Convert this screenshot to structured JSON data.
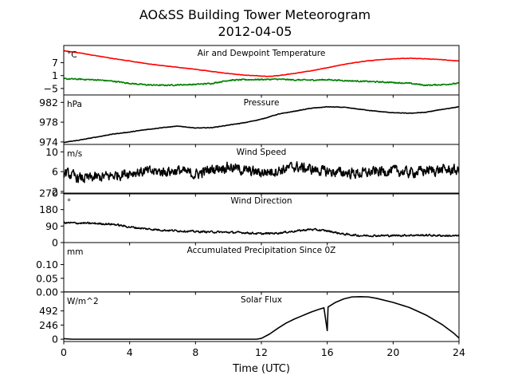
{
  "figure": {
    "title": "AO&SS Building Tower Meteorogram",
    "subtitle": "2012-04-05",
    "xlabel": "Time (UTC)",
    "x_ticks": [
      "0",
      "4",
      "8",
      "12",
      "16",
      "20",
      "24"
    ],
    "x_tick_values": [
      0,
      4,
      8,
      12,
      16,
      20,
      24
    ],
    "xlim": [
      0,
      24
    ]
  },
  "chart_data": [
    {
      "type": "line",
      "title": "Air and Dewpoint Temperature",
      "unit": "°C",
      "ylim": [
        -8,
        15
      ],
      "y_ticks": [
        "7",
        "1",
        "−5"
      ],
      "y_tick_values": [
        7,
        1,
        -5
      ],
      "series": [
        {
          "color": "#ff0000",
          "noise": 0.15,
          "points": [
            [
              0,
              12.5
            ],
            [
              1,
              11.5
            ],
            [
              2,
              10.2
            ],
            [
              3,
              8.9
            ],
            [
              4,
              7.8
            ],
            [
              5,
              6.6
            ],
            [
              6,
              5.6
            ],
            [
              7,
              4.8
            ],
            [
              8,
              3.9
            ],
            [
              9,
              2.9
            ],
            [
              10,
              2.0
            ],
            [
              11,
              1.2
            ],
            [
              12,
              0.8
            ],
            [
              12.5,
              0.6
            ],
            [
              13,
              1.0
            ],
            [
              14,
              2.0
            ],
            [
              15,
              3.2
            ],
            [
              16,
              4.6
            ],
            [
              17,
              6.2
            ],
            [
              18,
              7.4
            ],
            [
              19,
              8.3
            ],
            [
              20,
              8.8
            ],
            [
              21,
              9.1
            ],
            [
              22,
              8.8
            ],
            [
              23,
              8.4
            ],
            [
              24,
              7.8
            ]
          ]
        },
        {
          "color": "#008000",
          "noise": 0.45,
          "points": [
            [
              0,
              -0.5
            ],
            [
              1,
              -0.7
            ],
            [
              2,
              -1.0
            ],
            [
              3,
              -1.6
            ],
            [
              4,
              -2.6
            ],
            [
              5,
              -3.3
            ],
            [
              6,
              -3.5
            ],
            [
              7,
              -3.3
            ],
            [
              8,
              -3.1
            ],
            [
              9,
              -2.6
            ],
            [
              10,
              -1.2
            ],
            [
              11,
              -0.9
            ],
            [
              12,
              -0.8
            ],
            [
              13,
              -0.7
            ],
            [
              14,
              -1.0
            ],
            [
              15,
              -1.1
            ],
            [
              16,
              -0.9
            ],
            [
              17,
              -1.3
            ],
            [
              18,
              -1.6
            ],
            [
              19,
              -1.9
            ],
            [
              20,
              -2.2
            ],
            [
              21,
              -2.6
            ],
            [
              22,
              -3.5
            ],
            [
              23,
              -3.2
            ],
            [
              24,
              -2.6
            ]
          ]
        }
      ]
    },
    {
      "type": "line",
      "title": "Pressure",
      "unit": "hPa",
      "ylim": [
        973.5,
        983.5
      ],
      "y_ticks": [
        "982",
        "978",
        "974"
      ],
      "y_tick_values": [
        982,
        978,
        974
      ],
      "series": [
        {
          "color": "#000000",
          "noise": 0.08,
          "points": [
            [
              0,
              973.9
            ],
            [
              1,
              974.4
            ],
            [
              2,
              975.0
            ],
            [
              3,
              975.6
            ],
            [
              4,
              976.0
            ],
            [
              5,
              976.5
            ],
            [
              6,
              976.9
            ],
            [
              7,
              977.2
            ],
            [
              8,
              976.8
            ],
            [
              9,
              976.9
            ],
            [
              10,
              977.4
            ],
            [
              11,
              977.9
            ],
            [
              12,
              978.6
            ],
            [
              13,
              979.6
            ],
            [
              14,
              980.2
            ],
            [
              15,
              980.8
            ],
            [
              16,
              981.1
            ],
            [
              17,
              981.0
            ],
            [
              18,
              980.6
            ],
            [
              19,
              980.2
            ],
            [
              20,
              979.9
            ],
            [
              21,
              979.8
            ],
            [
              22,
              980.0
            ],
            [
              23,
              980.6
            ],
            [
              24,
              981.1
            ]
          ]
        }
      ]
    },
    {
      "type": "line",
      "title": "Wind Speed",
      "unit": "m/s",
      "ylim": [
        1.5,
        11.5
      ],
      "y_ticks": [
        "10",
        "6",
        "2"
      ],
      "y_tick_values": [
        10,
        6,
        2
      ],
      "series": [
        {
          "color": "#000000",
          "noise": 1.6,
          "points": [
            [
              0,
              5.8
            ],
            [
              1,
              4.6
            ],
            [
              2,
              4.8
            ],
            [
              3,
              5.2
            ],
            [
              4,
              5.8
            ],
            [
              5,
              6.0
            ],
            [
              6,
              6.0
            ],
            [
              7,
              6.2
            ],
            [
              8,
              5.4
            ],
            [
              9,
              6.5
            ],
            [
              10,
              7.0
            ],
            [
              11,
              6.2
            ],
            [
              12,
              5.8
            ],
            [
              13,
              6.2
            ],
            [
              14,
              7.0
            ],
            [
              15,
              6.5
            ],
            [
              16,
              6.0
            ],
            [
              17,
              5.8
            ],
            [
              18,
              5.6
            ],
            [
              19,
              6.0
            ],
            [
              20,
              6.2
            ],
            [
              21,
              5.8
            ],
            [
              22,
              6.2
            ],
            [
              23,
              6.4
            ],
            [
              24,
              6.2
            ]
          ]
        }
      ]
    },
    {
      "type": "line",
      "title": "Wind Direction",
      "unit": "°",
      "ylim": [
        0,
        270
      ],
      "y_ticks": [
        "270",
        "180",
        "90",
        "0"
      ],
      "y_tick_values": [
        270,
        180,
        90,
        0
      ],
      "series": [
        {
          "color": "#000000",
          "noise": 8,
          "points": [
            [
              0,
              108
            ],
            [
              1,
              106
            ],
            [
              2,
              104
            ],
            [
              3,
              100
            ],
            [
              4,
              85
            ],
            [
              5,
              75
            ],
            [
              6,
              68
            ],
            [
              7,
              64
            ],
            [
              8,
              60
            ],
            [
              9,
              58
            ],
            [
              10,
              56
            ],
            [
              11,
              54
            ],
            [
              12,
              48
            ],
            [
              13,
              52
            ],
            [
              14,
              62
            ],
            [
              15,
              72
            ],
            [
              16,
              64
            ],
            [
              17,
              46
            ],
            [
              18,
              38
            ],
            [
              19,
              38
            ],
            [
              20,
              38
            ],
            [
              21,
              40
            ],
            [
              22,
              40
            ],
            [
              23,
              38
            ],
            [
              24,
              36
            ]
          ]
        }
      ]
    },
    {
      "type": "line",
      "title": "Accumulated Precipitation Since 0Z",
      "unit": "mm",
      "ylim": [
        0,
        0.18
      ],
      "y_ticks": [
        "0.10",
        "0.05",
        "0.00"
      ],
      "y_tick_values": [
        0.1,
        0.05,
        0.0
      ],
      "series": [
        {
          "color": "#000000",
          "noise": 0,
          "points": [
            [
              0,
              0
            ],
            [
              24,
              0
            ]
          ]
        }
      ]
    },
    {
      "type": "line",
      "title": "Solar Flux",
      "unit": "W/m^2",
      "ylim": [
        -40,
        820
      ],
      "y_ticks": [
        "492",
        "246",
        "0"
      ],
      "y_tick_values": [
        492,
        246,
        0
      ],
      "series": [
        {
          "color": "#000000",
          "noise": 0,
          "points": [
            [
              0,
              10
            ],
            [
              0.5,
              0
            ],
            [
              11.7,
              0
            ],
            [
              12,
              15
            ],
            [
              12.5,
              90
            ],
            [
              13,
              190
            ],
            [
              13.5,
              280
            ],
            [
              14,
              350
            ],
            [
              14.5,
              410
            ],
            [
              15,
              470
            ],
            [
              15.5,
              520
            ],
            [
              15.8,
              545
            ],
            [
              16,
              150
            ],
            [
              16.05,
              560
            ],
            [
              16.5,
              640
            ],
            [
              17,
              700
            ],
            [
              17.5,
              735
            ],
            [
              18,
              740
            ],
            [
              18.5,
              735
            ],
            [
              19,
              710
            ],
            [
              20,
              640
            ],
            [
              21,
              550
            ],
            [
              22,
              420
            ],
            [
              23,
              250
            ],
            [
              23.7,
              100
            ],
            [
              24,
              20
            ]
          ]
        }
      ]
    }
  ]
}
